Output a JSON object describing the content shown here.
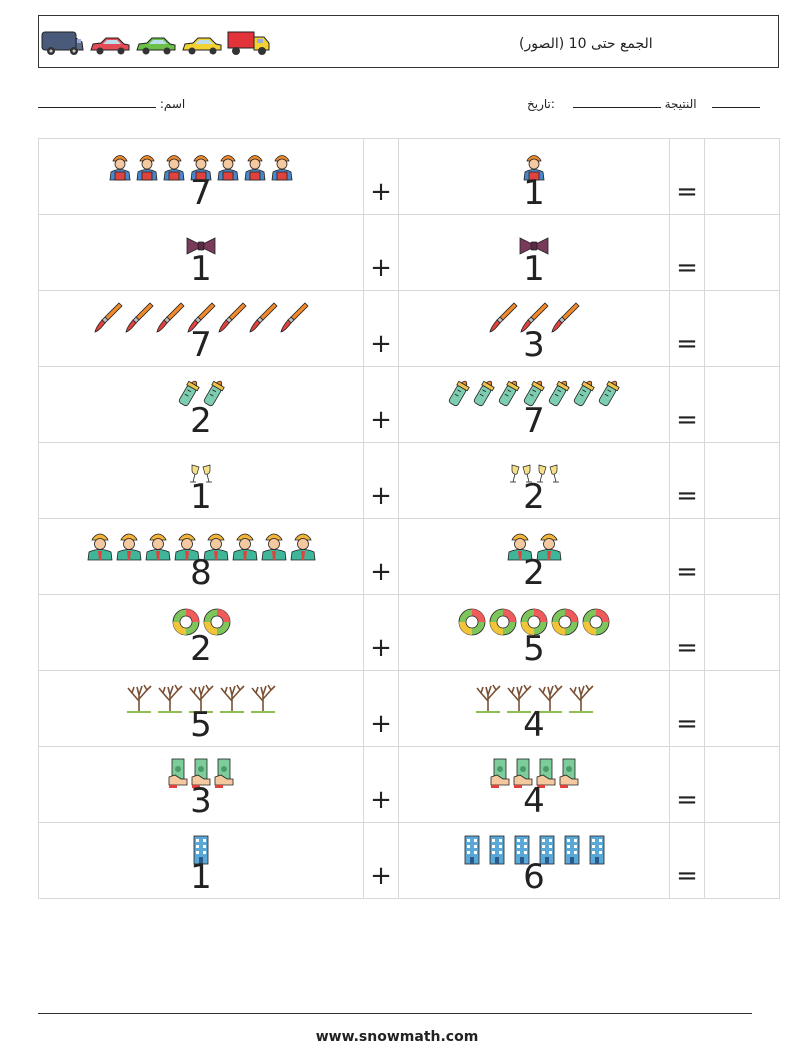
{
  "header": {
    "title": "(الجمع حتى 10 (الصور",
    "vehicle_icons": [
      "van-icon",
      "red-car-icon",
      "green-car-icon",
      "yellow-car-icon",
      "red-truck-icon"
    ]
  },
  "meta": {
    "name_label": ":اسم",
    "date_label": ":تاريخ",
    "score_label": "النتيجة"
  },
  "operator_plus": "+",
  "operator_equals": "=",
  "rows": [
    {
      "left": "7",
      "left_icon": "worker-red-icon",
      "right": "1",
      "right_icon": "worker-red-icon"
    },
    {
      "left": "1",
      "left_icon": "bow-tie-icon",
      "right": "1",
      "right_icon": "bow-tie-icon"
    },
    {
      "left": "7",
      "left_icon": "paintbrush-icon",
      "right": "3",
      "right_icon": "paintbrush-icon"
    },
    {
      "left": "2",
      "left_icon": "baby-bottle-icon",
      "right": "7",
      "right_icon": "baby-bottle-icon"
    },
    {
      "left": "1",
      "left_icon": "champagne-toast-icon",
      "right": "2",
      "right_icon": "champagne-toast-icon"
    },
    {
      "left": "8",
      "left_icon": "worker-teal-icon",
      "right": "2",
      "right_icon": "worker-teal-icon"
    },
    {
      "left": "2",
      "left_icon": "lifebuoy-icon",
      "right": "5",
      "right_icon": "lifebuoy-icon"
    },
    {
      "left": "5",
      "left_icon": "bare-tree-icon",
      "right": "4",
      "right_icon": "bare-tree-icon"
    },
    {
      "left": "3",
      "left_icon": "money-hand-icon",
      "right": "4",
      "right_icon": "money-hand-icon"
    },
    {
      "left": "1",
      "left_icon": "building-icon",
      "right": "6",
      "right_icon": "building-icon"
    }
  ],
  "footer": {
    "url": "www.snowmath.com"
  }
}
